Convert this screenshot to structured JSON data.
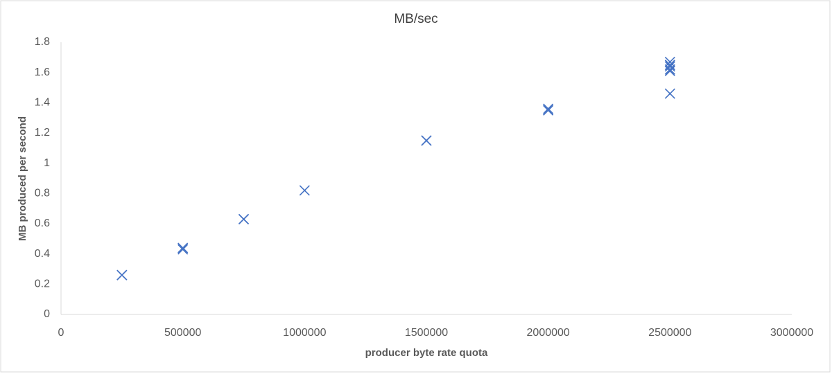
{
  "chart_data": {
    "type": "scatter",
    "title": "MB/sec",
    "x_label": "producer byte rate quota",
    "y_label": "MB produced per second",
    "x": [
      250000,
      250000,
      500000,
      500000,
      750000,
      750000,
      1000000,
      1500000,
      1500000,
      2000000,
      2000000,
      2500000,
      2500000,
      2500000,
      2500000,
      2500000,
      2500000
    ],
    "values": [
      0.26,
      0.26,
      0.43,
      0.44,
      0.63,
      0.63,
      0.82,
      1.15,
      1.15,
      1.35,
      1.36,
      1.46,
      1.61,
      1.62,
      1.64,
      1.65,
      1.67
    ],
    "color": "#4472c4",
    "xlim": [
      0,
      3000000
    ],
    "xticks": [
      0,
      500000,
      1000000,
      1500000,
      2000000,
      2500000,
      3000000
    ],
    "ylim": [
      0,
      1.8
    ],
    "yticks": [
      0,
      0.2,
      0.4,
      0.6,
      0.8,
      1,
      1.2,
      1.4,
      1.6,
      1.8
    ],
    "grid": false
  }
}
